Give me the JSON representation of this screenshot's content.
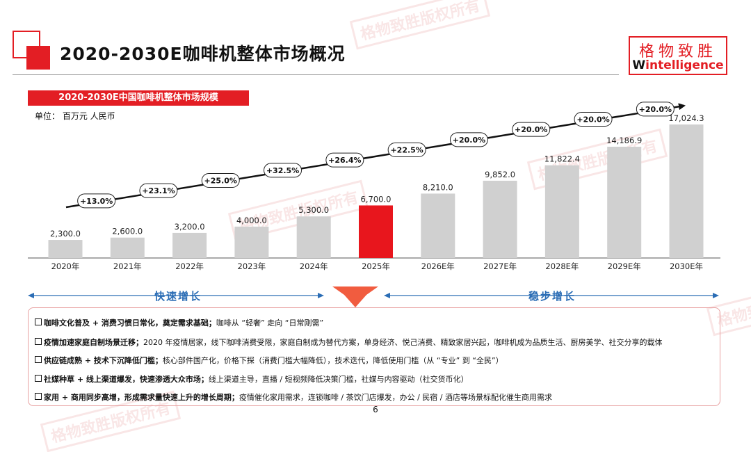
{
  "header": {
    "title": "2020-2030E咖啡机整体市场概况",
    "logo_cn": "格物致胜",
    "logo_en_w": "W",
    "logo_en_rest": "intelligence",
    "watermark": "格物致胜版权所有"
  },
  "subtitle_bar": "2020-2030E中国咖啡机整体市场规模",
  "unit_label": "单位：  百万元 人民币",
  "chart_data": {
    "type": "bar",
    "title": "2020-2030E中国咖啡机整体市场规模",
    "unit": "百万元 人民币",
    "categories": [
      "2020年",
      "2021年",
      "2022年",
      "2023年",
      "2024年",
      "2025年",
      "2026E年",
      "2027E年",
      "2028E年",
      "2029E年",
      "2030E年"
    ],
    "values": [
      2300.0,
      2600.0,
      3200.0,
      4000.0,
      5300.0,
      6700.0,
      8210.0,
      9852.0,
      11822.4,
      14186.9,
      17024.3
    ],
    "value_labels": [
      "2,300.0",
      "2,600.0",
      "3,200.0",
      "4,000.0",
      "5,300.0",
      "6,700.0",
      "8,210.0",
      "9,852.0",
      "11,822.4",
      "14,186.9",
      "17,024.3"
    ],
    "highlight_index": 5,
    "growth_rates": [
      "+13.0%",
      "+23.1%",
      "+25.0%",
      "+32.5%",
      "+26.4%",
      "+22.5%",
      "+20.0%",
      "+20.0%",
      "+20.0%",
      "+20.0%"
    ],
    "ylim": [
      0,
      18000
    ],
    "colors": {
      "bar": "#d0d0d0",
      "highlight": "#e8161d",
      "trend": "#111111"
    }
  },
  "phases": {
    "fast": "快速增长",
    "steady": "稳步增长"
  },
  "bullets": [
    {
      "bold": "咖啡文化普及 + 消费习惯日常化，奠定需求基础；",
      "text": "咖啡从 “轻奢” 走向 “日常刚需”"
    },
    {
      "bold": "疫情加速家庭自制场景迁移；",
      "text": "2020 年疫情居家，线下咖啡消费受限，家庭自制成为替代方案，单身经济、悦己消费、精致家居兴起，咖啡机成为品质生活、厨房美学、社交分享的载体"
    },
    {
      "bold": "供应链成熟 + 技术下沉降低门槛；",
      "text": "核心部件国产化，价格下探（消费门槛大幅降低），技术迭代，降低使用门槛（从 “专业” 到 “全民”）"
    },
    {
      "bold": "社媒种草 + 线上渠道爆发，快速渗透大众市场；",
      "text": "线上渠道主导，直播 / 短视频降低决策门槛，社媒与内容驱动（社交货币化）"
    },
    {
      "bold": "家用 + 商用同步高增，形成需求量快速上升的增长周期；",
      "text": "疫情催化家用需求，连锁咖啡 / 茶饮门店爆发，办公 / 民宿 / 酒店等场景标配化催生商用需求"
    }
  ],
  "page_number": "6"
}
